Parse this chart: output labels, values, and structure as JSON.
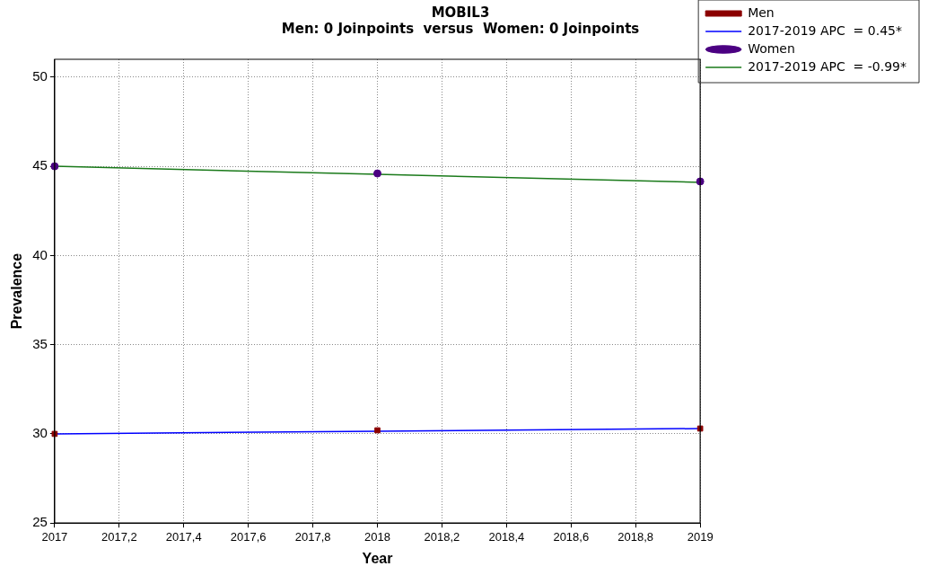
{
  "chart_data": {
    "type": "scatter",
    "title": "MOBIL3",
    "subtitle": "Men: 0 Joinpoints  versus  Women: 0 Joinpoints",
    "xlabel": "Year",
    "ylabel": "Prevalence",
    "x": [
      2017,
      2018,
      2019
    ],
    "series": [
      {
        "name": "Men",
        "color": "#8b0000",
        "marker": "square",
        "values": [
          30.0,
          30.2,
          30.3
        ]
      },
      {
        "name": "2017-2019 APC  = 0.45*",
        "type": "line",
        "marker": "none",
        "color": "#0000ff",
        "values": [
          30.0,
          30.15,
          30.3
        ]
      },
      {
        "name": "Women",
        "color": "#4b0082",
        "marker": "circle",
        "values": [
          45.0,
          44.6,
          44.15
        ]
      },
      {
        "name": "2017-2019 APC  = -0.99*",
        "type": "line",
        "marker": "none",
        "color": "#1a7a1a",
        "values": [
          45.0,
          44.55,
          44.1
        ]
      }
    ],
    "xlim": [
      2017,
      2019
    ],
    "xticks": [
      2017,
      {
        "value": 2017.2,
        "label": "2017,2"
      },
      {
        "value": 2017.4,
        "label": "2017,4"
      },
      {
        "value": 2017.6,
        "label": "2017,6"
      },
      {
        "value": 2017.8,
        "label": "2017,8"
      },
      2018,
      {
        "value": 2018.2,
        "label": "2018,2"
      },
      {
        "value": 2018.4,
        "label": "2018,4"
      },
      {
        "value": 2018.6,
        "label": "2018,6"
      },
      {
        "value": 2018.8,
        "label": "2018,8"
      },
      2019
    ],
    "ylim": [
      25,
      51
    ],
    "yticks": [
      25,
      30,
      35,
      40,
      45,
      50
    ],
    "grid": true,
    "legend": "top right"
  }
}
